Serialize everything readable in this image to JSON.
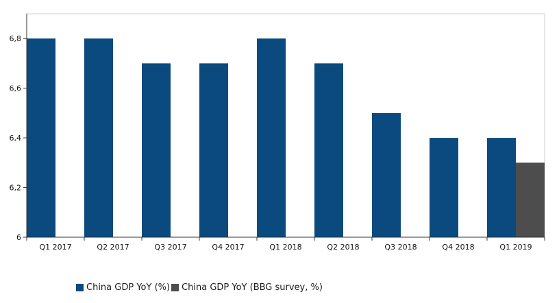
{
  "chart_data": {
    "type": "bar",
    "categories": [
      "Q1 2017",
      "Q2 2017",
      "Q3 2017",
      "Q4 2017",
      "Q1 2018",
      "Q2 2018",
      "Q3 2018",
      "Q4 2018",
      "Q1 2019"
    ],
    "series": [
      {
        "name": "China GDP YoY (%)",
        "color": "#0b4a7e",
        "values": [
          6.8,
          6.8,
          6.7,
          6.7,
          6.8,
          6.7,
          6.5,
          6.4,
          6.4
        ]
      },
      {
        "name": "China GDP YoY (BBG survey, %)",
        "color": "#4d4d4d",
        "values": [
          null,
          null,
          null,
          null,
          null,
          null,
          null,
          null,
          6.3
        ]
      }
    ],
    "ylim": [
      6,
      6.9
    ],
    "yticks": [
      "6",
      "6,2",
      "6,4",
      "6,6",
      "6,8"
    ],
    "title": "",
    "xlabel": "",
    "ylabel": "",
    "legend_position": "bottom-left",
    "grid": false
  }
}
